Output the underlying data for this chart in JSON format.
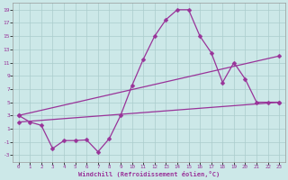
{
  "xlabel": "Windchill (Refroidissement éolien,°C)",
  "background_color": "#cce8e8",
  "grid_color": "#aacccc",
  "line_color": "#993399",
  "xlim": [
    -0.5,
    23.5
  ],
  "ylim": [
    -4,
    20
  ],
  "xtick_labels": [
    "0",
    "1",
    "2",
    "3",
    "4",
    "5",
    "6",
    "7",
    "8",
    "9",
    "10",
    "11",
    "12",
    "13",
    "14",
    "15",
    "16",
    "17",
    "18",
    "19",
    "20",
    "21",
    "22",
    "23"
  ],
  "xtick_pos": [
    0,
    1,
    2,
    3,
    4,
    5,
    6,
    7,
    8,
    9,
    10,
    11,
    12,
    13,
    14,
    15,
    16,
    17,
    18,
    19,
    20,
    21,
    22,
    23
  ],
  "yticks": [
    -3,
    -1,
    1,
    3,
    5,
    7,
    9,
    11,
    13,
    15,
    17,
    19
  ],
  "line1_x": [
    0,
    1,
    2,
    3,
    4,
    5,
    6,
    7,
    8,
    9,
    10,
    11,
    12,
    13,
    14,
    15,
    16,
    17,
    18,
    19,
    20,
    21,
    22,
    23
  ],
  "line1_y": [
    3.0,
    2.0,
    1.5,
    -2.0,
    -0.8,
    -0.8,
    -0.7,
    -2.5,
    -0.5,
    3.0,
    7.5,
    11.5,
    15.0,
    17.5,
    19.0,
    19.0,
    15.0,
    12.5,
    8.0,
    11.0,
    8.5,
    5.0,
    5.0,
    5.0
  ],
  "line2_x": [
    0,
    23
  ],
  "line2_y": [
    3.0,
    12.0
  ],
  "line3_x": [
    0,
    23
  ],
  "line3_y": [
    2.0,
    5.0
  ],
  "markersize": 2.5,
  "linewidth": 0.9
}
